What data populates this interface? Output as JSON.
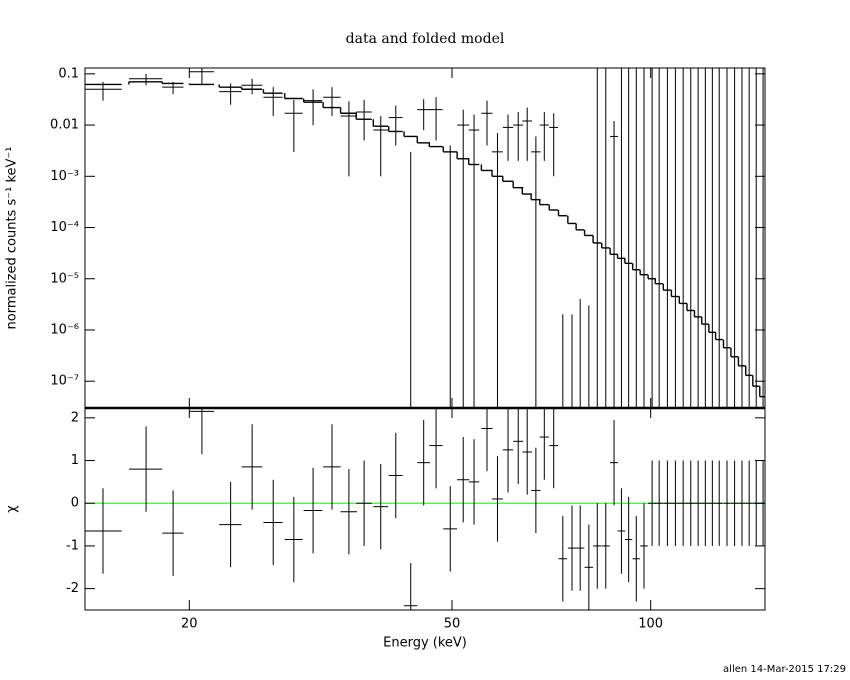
{
  "chart_data": [
    {
      "type": "errorbar",
      "title": "data and folded model",
      "ylabel": "normalized counts s⁻¹ keV⁻¹",
      "log_x": true,
      "log_y": true,
      "xlim": [
        13.9,
        149
      ],
      "xticks": [
        20,
        50,
        100
      ],
      "ylim": [
        3e-08,
        0.13
      ],
      "yticks": [
        {
          "value": 0.1,
          "label": "0.1"
        },
        {
          "value": 0.01,
          "label": "0.01"
        },
        {
          "value": 0.001,
          "label": "10⁻³"
        },
        {
          "value": 0.0001,
          "label": "10⁻⁴"
        },
        {
          "value": 1e-05,
          "label": "10⁻⁵"
        },
        {
          "value": 1e-06,
          "label": "10⁻⁶"
        },
        {
          "value": 1e-07,
          "label": "10⁻⁷"
        }
      ],
      "series": [
        {
          "kind": "points",
          "color": "#000000",
          "x": [
            14.8,
            17.2,
            18.9,
            20.9,
            23.1,
            24.9,
            26.8,
            28.8,
            30.8,
            32.9,
            34.9,
            36.8,
            39.0,
            41.1,
            43.3,
            45.3,
            47.3,
            49.7,
            52.0,
            54.0,
            56.5,
            58.6,
            60.8,
            63.0,
            65.0,
            67.0,
            69.0,
            71.3,
            73.6,
            76.0,
            78.2,
            80.6,
            83.0,
            85.5,
            88.0,
            90.3,
            92.6,
            95.1,
            97.7,
            100.5,
            103,
            106,
            109,
            112,
            115,
            118,
            121,
            124,
            127,
            130.5,
            134,
            137.5,
            141,
            144.5,
            148
          ],
          "xerr": [
            1.0,
            1.0,
            0.7,
            0.9,
            0.9,
            0.9,
            0.9,
            0.9,
            1.0,
            1.0,
            1.0,
            1.0,
            1.0,
            1.0,
            1.0,
            1.0,
            1.1,
            1.2,
            1.1,
            1.0,
            1.1,
            1.1,
            1.1,
            1.1,
            1.1,
            1.1,
            1.1,
            1.1,
            1.1,
            1.1,
            1.1,
            1.2,
            1.2,
            1.2,
            1.2,
            1.2,
            1.2,
            1.2,
            1.3,
            1.4,
            1.4,
            1.5,
            1.5,
            1.5,
            1.5,
            1.5,
            1.5,
            1.5,
            1.6,
            1.6,
            1.7,
            1.7,
            1.7,
            1.7,
            1.7
          ],
          "values": [
            0.05,
            0.08,
            0.055,
            0.11,
            0.045,
            0.06,
            0.035,
            0.017,
            0.03,
            0.035,
            0.015,
            0.018,
            0.008,
            0.014,
            2e-08,
            0.02,
            0.02,
            2e-08,
            0.01,
            0.008,
            0.017,
            0.003,
            0.009,
            0.01,
            0.012,
            0.003,
            0.01,
            0.009,
            2e-08,
            2e-08,
            2e-08,
            2e-08,
            2e-08,
            2e-08,
            0.006,
            2e-08,
            2e-08,
            2e-08,
            2e-08,
            2e-08,
            2e-08,
            2e-08,
            2e-08,
            2e-08,
            2e-08,
            2e-08,
            2e-08,
            2e-08,
            2e-08,
            2e-08,
            2e-08,
            2e-08,
            2e-08,
            2e-08,
            2e-08
          ],
          "yerr": [
            0.02,
            0.02,
            0.015,
            0.05,
            0.02,
            0.02,
            0.02,
            0.014,
            0.02,
            0.02,
            0.014,
            0.013,
            0.007,
            0.01,
            0.003,
            0.012,
            0.015,
            0.004,
            0.01,
            0.008,
            0.013,
            0.004,
            0.007,
            0.008,
            0.01,
            0.003,
            0.008,
            0.008,
            2e-06,
            2e-06,
            4e-06,
            3e-06,
            0.5,
            0.5,
            0.006,
            0.5,
            0.5,
            0.5,
            0.5,
            0.5,
            0.5,
            0.5,
            0.5,
            0.5,
            0.5,
            0.5,
            0.5,
            0.5,
            0.5,
            0.5,
            0.5,
            0.5,
            0.5,
            0.5,
            0.5
          ]
        },
        {
          "kind": "step",
          "color": "#000000",
          "x": [
            14.8,
            17.2,
            18.9,
            20.9,
            23.1,
            24.9,
            26.8,
            28.8,
            30.8,
            32.9,
            34.9,
            36.8,
            39.0,
            41.1,
            43.3,
            45.3,
            47.3,
            49.7,
            52.0,
            54.0,
            56.5,
            58.6,
            60.8,
            63.0,
            65.0,
            67.0,
            69.0,
            71.3,
            73.6,
            76.0,
            78.2,
            80.6,
            83.0,
            85.5,
            88.0,
            90.3,
            92.6,
            95.1,
            97.7,
            100.5,
            103,
            106,
            109,
            112,
            115,
            118,
            121,
            124,
            127,
            130.5,
            134,
            137.5,
            141,
            144.5,
            148
          ],
          "xerr": [
            1.0,
            1.0,
            0.7,
            0.9,
            0.9,
            0.9,
            0.9,
            0.9,
            1.0,
            1.0,
            1.0,
            1.0,
            1.0,
            1.0,
            1.0,
            1.0,
            1.1,
            1.2,
            1.1,
            1.0,
            1.1,
            1.1,
            1.1,
            1.1,
            1.1,
            1.1,
            1.1,
            1.1,
            1.1,
            1.1,
            1.1,
            1.2,
            1.2,
            1.2,
            1.2,
            1.2,
            1.2,
            1.2,
            1.3,
            1.4,
            1.4,
            1.5,
            1.5,
            1.5,
            1.5,
            1.5,
            1.5,
            1.5,
            1.6,
            1.6,
            1.7,
            1.7,
            1.7,
            1.7,
            1.7
          ],
          "values": [
            0.062,
            0.07,
            0.065,
            0.062,
            0.055,
            0.05,
            0.042,
            0.033,
            0.028,
            0.022,
            0.017,
            0.013,
            0.0095,
            0.0075,
            0.006,
            0.0045,
            0.0038,
            0.003,
            0.0022,
            0.0017,
            0.0013,
            0.001,
            0.0008,
            0.0006,
            0.00045,
            0.00035,
            0.00028,
            0.00022,
            0.00017,
            0.00012,
            9e-05,
            7e-05,
            5e-05,
            4e-05,
            3e-05,
            2.5e-05,
            2e-05,
            1.5e-05,
            1.2e-05,
            1e-05,
            8e-06,
            6e-06,
            4.5e-06,
            3.3e-06,
            2.4e-06,
            1.8e-06,
            1.3e-06,
            9e-07,
            6.5e-07,
            4.5e-07,
            3e-07,
            2e-07,
            1.3e-07,
            8e-08,
            5e-08
          ]
        }
      ]
    },
    {
      "type": "errorbar",
      "ylabel": "χ",
      "xlabel": "Energy (keV)",
      "log_x": true,
      "log_y": false,
      "xlim": [
        13.9,
        149
      ],
      "xticks": [
        20,
        50,
        100
      ],
      "ylim": [
        -2.5,
        2.23
      ],
      "yticks": [
        -2,
        -1,
        0,
        1,
        2
      ],
      "reference_line": {
        "value": 0,
        "color": "#00ff00"
      },
      "series": [
        {
          "kind": "points",
          "color": "#000000",
          "x": [
            14.8,
            17.2,
            18.9,
            20.9,
            23.1,
            24.9,
            26.8,
            28.8,
            30.8,
            32.9,
            34.9,
            36.8,
            39.0,
            41.1,
            43.3,
            45.3,
            47.3,
            49.7,
            52.0,
            54.0,
            56.5,
            58.6,
            60.8,
            63.0,
            65.0,
            67.0,
            69.0,
            71.3,
            73.6,
            76.0,
            78.2,
            80.6,
            83.0,
            85.5,
            88.0,
            90.3,
            92.6,
            95.1,
            97.7,
            100.5,
            103,
            106,
            109,
            112,
            115,
            118,
            121,
            124,
            127,
            130.5,
            134,
            137.5,
            141,
            144.5,
            148
          ],
          "xerr": [
            1.0,
            1.0,
            0.7,
            0.9,
            0.9,
            0.9,
            0.9,
            0.9,
            1.0,
            1.0,
            1.0,
            1.0,
            1.0,
            1.0,
            1.0,
            1.0,
            1.1,
            1.2,
            1.1,
            1.0,
            1.1,
            1.1,
            1.1,
            1.1,
            1.1,
            1.1,
            1.1,
            1.1,
            1.1,
            1.1,
            1.1,
            1.2,
            1.2,
            1.2,
            1.2,
            1.2,
            1.2,
            1.2,
            1.3,
            1.4,
            1.4,
            1.5,
            1.5,
            1.5,
            1.5,
            1.5,
            1.5,
            1.5,
            1.6,
            1.6,
            1.7,
            1.7,
            1.7,
            1.7,
            1.7
          ],
          "values": [
            -0.65,
            0.8,
            -0.7,
            2.15,
            -0.5,
            0.85,
            -0.45,
            -0.85,
            -0.17,
            0.85,
            -0.2,
            0.0,
            -0.08,
            0.65,
            -2.4,
            0.95,
            1.35,
            -0.6,
            0.55,
            0.5,
            1.75,
            0.1,
            1.25,
            1.45,
            1.2,
            0.3,
            1.55,
            1.35,
            -1.3,
            -1.05,
            -1.05,
            -1.5,
            -1.0,
            -1.0,
            0.95,
            -0.65,
            -0.85,
            -1.3,
            -1.0,
            0,
            0,
            0,
            0,
            0,
            0,
            0,
            0,
            0,
            0,
            0,
            0,
            0,
            0,
            0,
            0
          ],
          "yerr": [
            1,
            1,
            1,
            1,
            1,
            1,
            1,
            1,
            1,
            1,
            1,
            1,
            1,
            1,
            1,
            1,
            1,
            1,
            1,
            1,
            1,
            1,
            1,
            1,
            1,
            1,
            1,
            1,
            1,
            1,
            1,
            1,
            1,
            1,
            1,
            1,
            1,
            1,
            1,
            1,
            1,
            1,
            1,
            1,
            1,
            1,
            1,
            1,
            1,
            1,
            1,
            1,
            1,
            1,
            1
          ]
        }
      ]
    }
  ],
  "footer": "allen 14-Mar-2015 17:29"
}
